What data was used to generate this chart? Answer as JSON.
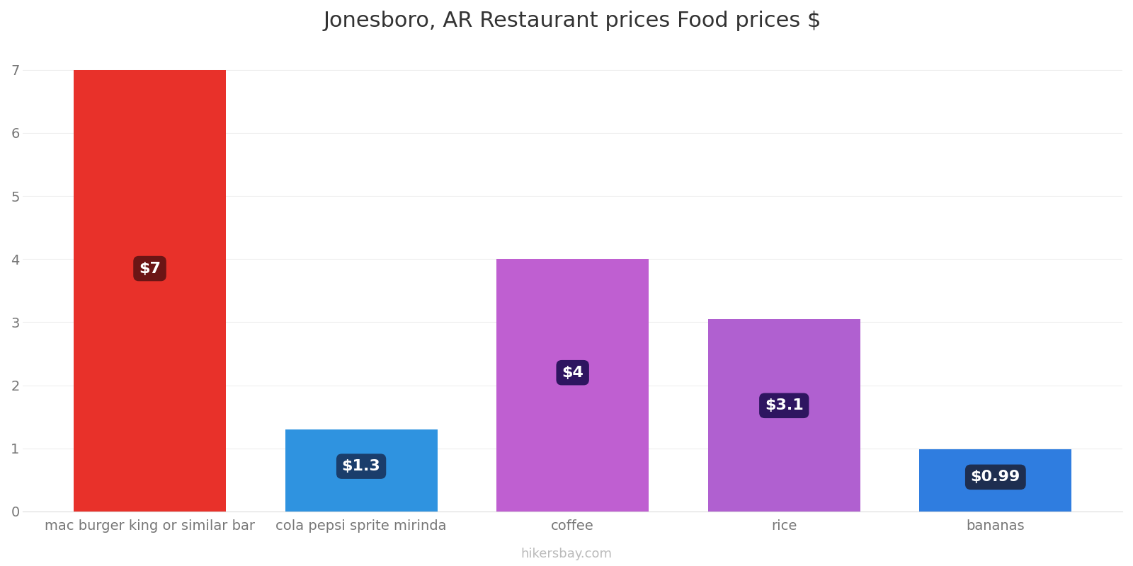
{
  "title": "Jonesboro, AR Restaurant prices Food prices $",
  "categories": [
    "mac burger king or similar bar",
    "cola pepsi sprite mirinda",
    "coffee",
    "rice",
    "bananas"
  ],
  "values": [
    7,
    1.3,
    4,
    3.05,
    0.99
  ],
  "labels": [
    "$7",
    "$1.3",
    "$4",
    "$3.1",
    "$0.99"
  ],
  "bar_colors": [
    "#e8312a",
    "#2f93e0",
    "#bf5fd1",
    "#b060d0",
    "#2f7de0"
  ],
  "label_box_colors": [
    "#6b1515",
    "#1a3d6b",
    "#2e1560",
    "#2e1560",
    "#1e2e50"
  ],
  "ylim": [
    0,
    7.4
  ],
  "yticks": [
    0,
    1,
    2,
    3,
    4,
    5,
    6,
    7
  ],
  "watermark": "hikersbay.com",
  "title_fontsize": 22,
  "tick_fontsize": 14,
  "label_fontsize": 16,
  "background_color": "#ffffff",
  "grid_color": "#eeeeee"
}
